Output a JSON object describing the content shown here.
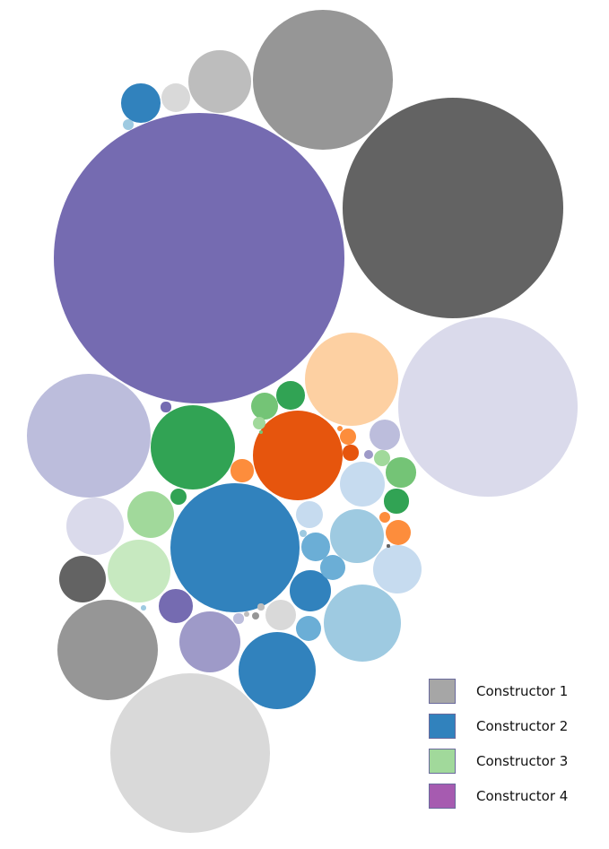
{
  "chart_data": {
    "type": "bubble-pack",
    "legend": {
      "placement": "bottom-right",
      "entries": [
        {
          "label": "Constructor 1",
          "color": "#a6a6a6"
        },
        {
          "label": "Constructor 2",
          "color": "#3182bd"
        },
        {
          "label": "Constructor 3",
          "color": "#a1d99b"
        },
        {
          "label": "Constructor 4",
          "color": "#a65bb0"
        }
      ]
    },
    "bubbles": [
      {
        "color": "#756bb1",
        "value": 100
      },
      {
        "color": "#636363",
        "value": 58
      },
      {
        "color": "#dadaeb",
        "value": 38
      },
      {
        "color": "#d9d9d9",
        "value": 30
      },
      {
        "color": "#969696",
        "value": 23
      },
      {
        "color": "#bcbddc",
        "value": 18
      },
      {
        "color": "#3182bd",
        "value": 20
      },
      {
        "color": "#fdd0a2",
        "value": 10.5
      },
      {
        "color": "#e6550d",
        "value": 9.5
      },
      {
        "color": "#31a354",
        "value": 8.5
      },
      {
        "color": "#969696",
        "value": 12
      },
      {
        "color": "#9ecae1",
        "value": 7.2
      },
      {
        "color": "#3182bd",
        "value": 7
      },
      {
        "color": "#9e9ac8",
        "value": 4.5
      },
      {
        "color": "#c7e9c0",
        "value": 4.8
      },
      {
        "color": "#bdbdbd",
        "value": 4.6
      },
      {
        "color": "#dadaeb",
        "value": 3.9
      },
      {
        "color": "#9ecae1",
        "value": 3.4
      },
      {
        "color": "#a1d99b",
        "value": 2.6
      },
      {
        "color": "#c6dbef",
        "value": 2.8
      },
      {
        "color": "#c6dbef",
        "value": 2.4
      },
      {
        "color": "#636363",
        "value": 2.6
      },
      {
        "color": "#3182bd",
        "value": 2.0
      },
      {
        "color": "#3182bd",
        "value": 1.8
      },
      {
        "color": "#756bb1",
        "value": 1.35
      },
      {
        "color": "#d9d9d9",
        "value": 1.15
      },
      {
        "color": "#74c476",
        "value": 1.05
      },
      {
        "color": "#31a354",
        "value": 0.95
      },
      {
        "color": "#74c476",
        "value": 0.85
      },
      {
        "color": "#bcbddc",
        "value": 1.1
      },
      {
        "color": "#fd8d3c",
        "value": 0.8
      },
      {
        "color": "#6baed6",
        "value": 0.95
      },
      {
        "color": "#c6dbef",
        "value": 0.9
      },
      {
        "color": "#6baed6",
        "value": 0.75
      },
      {
        "color": "#d9d9d9",
        "value": 1.0
      },
      {
        "color": "#6baed6",
        "value": 0.8
      },
      {
        "color": "#31a354",
        "value": 0.7
      },
      {
        "color": "#fd8d3c",
        "value": 0.6
      },
      {
        "color": "#e6550d",
        "value": 0.28
      },
      {
        "color": "#fd8d3c",
        "value": 0.3
      },
      {
        "color": "#a1d99b",
        "value": 0.32
      },
      {
        "color": "#31a354",
        "value": 0.33
      },
      {
        "color": "#756bb1",
        "value": 0.12
      },
      {
        "color": "#a1d99b",
        "value": 0.2
      },
      {
        "color": "#fd8d3c",
        "value": 0.16
      },
      {
        "color": "#9ecae1",
        "value": 0.14
      },
      {
        "color": "#bcbddc",
        "value": 0.12
      },
      {
        "color": "#9e9ac8",
        "value": 0.1
      },
      {
        "color": "#969696",
        "value": 0.07
      },
      {
        "color": "#bdbdbd",
        "value": 0.05
      },
      {
        "color": "#fd8d3c",
        "value": 0.04
      },
      {
        "color": "#bdbdbd",
        "value": 0.04
      },
      {
        "color": "#636363",
        "value": 0.01
      },
      {
        "color": "#9ecae1",
        "value": 0.06
      },
      {
        "color": "#9ecae1",
        "value": 0.03
      },
      {
        "color": "#74c476",
        "value": 0.02
      }
    ]
  }
}
